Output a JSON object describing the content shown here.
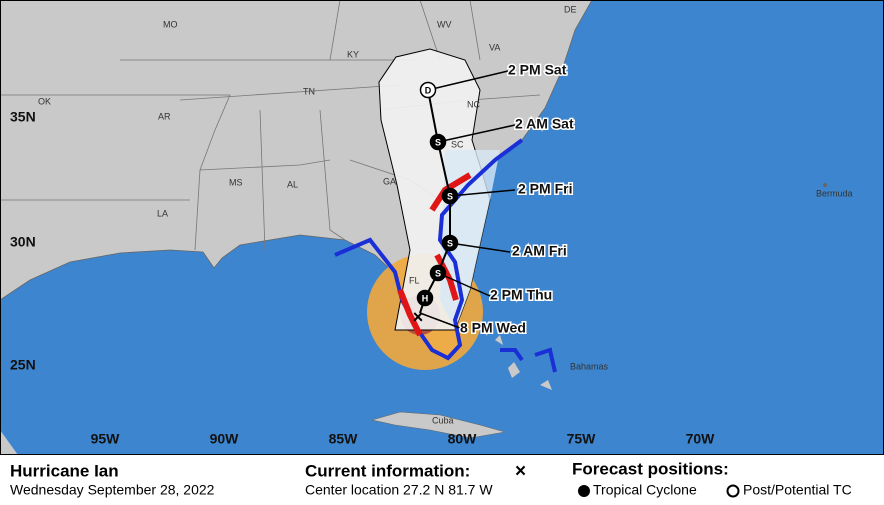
{
  "map": {
    "state_labels": [
      "MO",
      "WV",
      "DE",
      "KY",
      "VA",
      "OK",
      "TN",
      "NC",
      "AR",
      "SC",
      "MS",
      "AL",
      "GA",
      "LA",
      "FL"
    ],
    "region_labels": [
      "Bermuda",
      "Bahamas",
      "Cuba"
    ],
    "latitude_labels": [
      "35N",
      "30N",
      "25N"
    ],
    "longitude_labels": [
      "95W",
      "90W",
      "85W",
      "80W",
      "75W",
      "70W"
    ],
    "forecast_labels": [
      "2 PM Sat",
      "2 AM Sat",
      "2 PM Fri",
      "2 AM Fri",
      "2 PM Thu",
      "8 PM Wed"
    ],
    "point_letters": [
      "D",
      "S",
      "S",
      "S",
      "S",
      "H"
    ]
  },
  "info_panel": {
    "storm_name": "Hurricane Ian",
    "date": "Wednesday September 28, 2022",
    "current_heading": "Current information:",
    "current_symbol": "×",
    "center_location": "Center location 27.2 N 81.7 W",
    "forecast_heading": "Forecast positions:",
    "legend": [
      "Tropical Cyclone",
      "Post/Potential TC"
    ]
  }
}
